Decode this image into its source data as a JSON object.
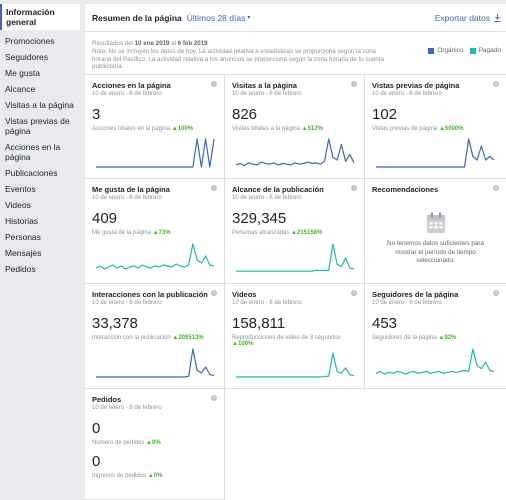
{
  "sidebar": {
    "items": [
      {
        "label": "Información general",
        "active": true
      },
      {
        "label": "Promociones"
      },
      {
        "label": "Seguidores"
      },
      {
        "label": "Me gusta"
      },
      {
        "label": "Alcance"
      },
      {
        "label": "Visitas a la página"
      },
      {
        "label": "Vistas previas de página"
      },
      {
        "label": "Acciones en la página"
      },
      {
        "label": "Publicaciones"
      },
      {
        "label": "Eventos"
      },
      {
        "label": "Videos"
      },
      {
        "label": "Historias"
      },
      {
        "label": "Personas"
      },
      {
        "label": "Mensajes"
      },
      {
        "label": "Pedidos"
      }
    ]
  },
  "header": {
    "title": "Resumen de la página",
    "range": "Últimos 28 días",
    "export": "Exportar datos"
  },
  "note": {
    "results_prefix": "Resultados del ",
    "date_start": "10 ene 2019",
    "date_mid": " al ",
    "date_end": "6 feb 2019",
    "text": "Nota: No se incluyen los datos de hoy. La actividad relativa a estadísticas se proporciona según la zona horaria del Pacífico. La actividad relativa a los anuncios se proporciona según la zona horaria de tu cuenta publicitaria."
  },
  "legend": {
    "organic": {
      "label": "Orgánico",
      "color": "#4267b2"
    },
    "paid": {
      "label": "Pagado",
      "color": "#20b9a5"
    }
  },
  "date_range": "10 de enero - 6 de febrero",
  "cards": {
    "acciones": {
      "title": "Acciones en la página",
      "value": "3",
      "sub": "Acciones totales en la página",
      "change": "100%",
      "color": "#4267b2",
      "series": [
        0,
        0,
        0,
        0,
        0,
        0,
        0,
        0,
        0,
        0,
        0,
        0,
        0,
        0,
        0,
        0,
        0,
        0,
        0,
        0,
        0,
        0,
        0,
        0,
        1,
        0,
        1,
        0,
        1
      ]
    },
    "visitas": {
      "title": "Visitas a la página",
      "value": "826",
      "sub": "Visitas totales a la página",
      "change": "512%",
      "color": "#4267b2",
      "series": [
        3,
        5,
        2,
        6,
        4,
        3,
        7,
        5,
        4,
        6,
        3,
        5,
        4,
        3,
        6,
        4,
        5,
        7,
        5,
        6,
        4,
        8,
        40,
        14,
        10,
        32,
        8,
        18,
        6
      ]
    },
    "vistas": {
      "title": "Vistas previas de página",
      "value": "102",
      "sub": "Vistas previas de página",
      "change": "5000%",
      "color": "#4267b2",
      "series": [
        0,
        0,
        0,
        0,
        0,
        0,
        0,
        0,
        0,
        0,
        0,
        0,
        0,
        0,
        0,
        0,
        0,
        0,
        0,
        0,
        0,
        0,
        8,
        3,
        2,
        6,
        2,
        3,
        2
      ]
    },
    "megusta": {
      "title": "Me gusta de la página",
      "value": "409",
      "sub": "Me gusta de la página",
      "change": "73%",
      "color": "#20b9a5",
      "series": [
        4,
        6,
        3,
        5,
        7,
        4,
        6,
        3,
        5,
        6,
        4,
        7,
        5,
        4,
        6,
        5,
        7,
        6,
        5,
        8,
        6,
        5,
        7,
        28,
        12,
        9,
        16,
        7,
        6
      ]
    },
    "alcance": {
      "title": "Alcance de la publicación",
      "value": "329,345",
      "sub": "Personas alcanzadas",
      "change": "215158%",
      "color": "#20b9a5",
      "series": [
        1,
        1,
        1,
        1,
        1,
        1,
        1,
        1,
        1,
        1,
        1,
        1,
        1,
        1,
        1,
        1,
        1,
        1,
        1,
        2,
        2,
        2,
        2,
        36,
        10,
        7,
        18,
        5,
        4
      ]
    },
    "recomendaciones": {
      "title": "Recomendaciones",
      "empty": "No tenemos datos suficientes para mostrar el período de tiempo seleccionado."
    },
    "interacciones": {
      "title": "Interacciones con la publicación",
      "value": "33,378",
      "sub": "Interacción con la publicación",
      "change": "208513%",
      "color": "#4267b2",
      "series": [
        0,
        0,
        0,
        0,
        0,
        0,
        0,
        0,
        0,
        0,
        0,
        0,
        0,
        0,
        0,
        0,
        0,
        0,
        0,
        0,
        0,
        0,
        1,
        34,
        8,
        5,
        12,
        3,
        2
      ]
    },
    "videos": {
      "title": "Videos",
      "value": "158,811",
      "sub": "Reproducciones de video de 3 segundos",
      "change": "100%",
      "color": "#20b9a5",
      "series": [
        0,
        0,
        0,
        0,
        0,
        0,
        0,
        0,
        0,
        0,
        0,
        0,
        0,
        0,
        0,
        0,
        0,
        0,
        0,
        0,
        0,
        1,
        1,
        34,
        8,
        5,
        13,
        3,
        2
      ]
    },
    "seguidores": {
      "title": "Seguidores de la página",
      "value": "453",
      "sub": "Seguidores de la página",
      "change": "92%",
      "color": "#20b9a5",
      "series": [
        4,
        6,
        3,
        5,
        4,
        6,
        5,
        3,
        5,
        6,
        4,
        5,
        6,
        4,
        5,
        6,
        4,
        5,
        6,
        5,
        6,
        7,
        6,
        30,
        12,
        9,
        16,
        7,
        6
      ]
    },
    "pedidos": {
      "title": "Pedidos",
      "value": "0",
      "sub": "Número de pedidos",
      "change": "0%",
      "value2": "0",
      "sub2": "Ingresos de pedidos",
      "change2": "0%"
    }
  }
}
